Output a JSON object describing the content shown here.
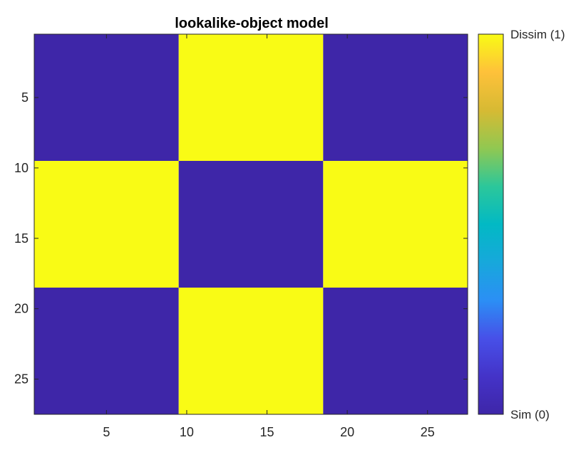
{
  "chart_data": {
    "type": "heatmap",
    "title": "lookalike-object model",
    "xlabel": "",
    "ylabel": "",
    "n": 27,
    "block_edges": [
      1,
      10,
      19,
      28
    ],
    "block_values": [
      [
        0,
        1,
        0
      ],
      [
        1,
        0,
        1
      ],
      [
        0,
        1,
        0
      ]
    ],
    "value_range": [
      0,
      1
    ],
    "x_ticks": [
      5,
      10,
      15,
      20,
      25
    ],
    "y_ticks": [
      5,
      10,
      15,
      20,
      25
    ],
    "xlim": [
      0.5,
      27.5
    ],
    "ylim": [
      0.5,
      27.5
    ],
    "y_reversed": true,
    "colormap": "parula",
    "colors": {
      "low": "#3e26a8",
      "high": "#f9fb15"
    },
    "colorbar": {
      "ticks": [
        {
          "value": 1,
          "label": "Dissim (1)"
        },
        {
          "value": 0,
          "label": "Sim (0)"
        }
      ]
    }
  }
}
